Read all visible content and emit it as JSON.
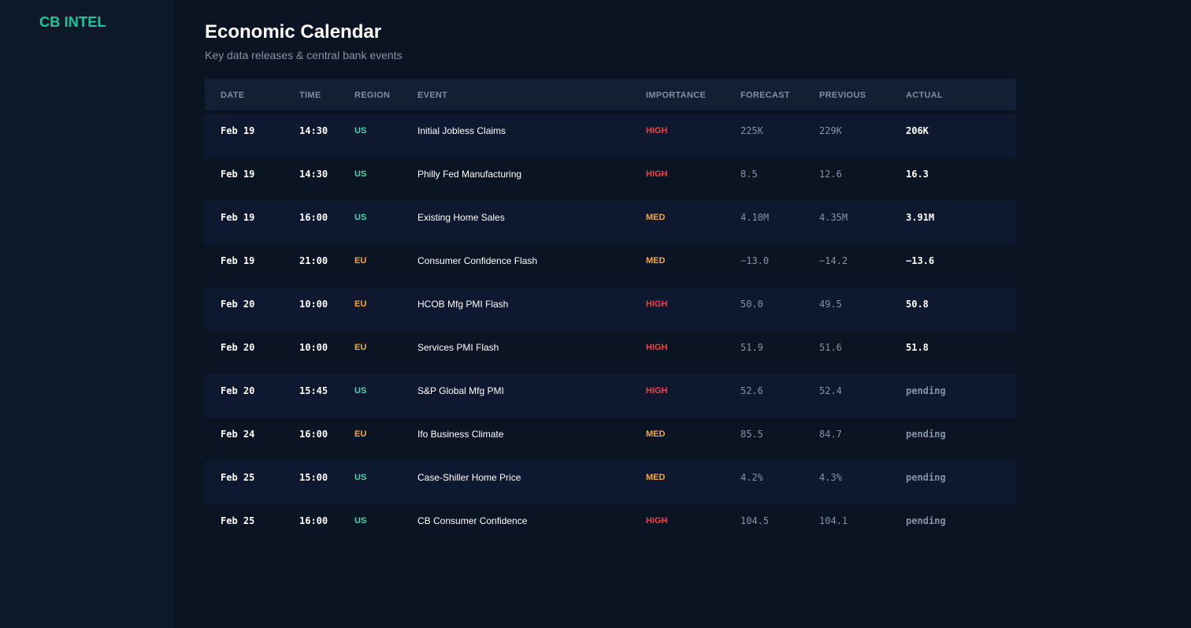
{
  "app": {
    "logo": "CB INTEL"
  },
  "page": {
    "title": "Economic Calendar",
    "subtitle": "Key data releases & central bank events"
  },
  "table": {
    "headers": {
      "date": "DATE",
      "time": "TIME",
      "region": "REGION",
      "event": "EVENT",
      "importance": "IMPORTANCE",
      "forecast": "FORECAST",
      "previous": "PREVIOUS",
      "actual": "ACTUAL"
    },
    "rows": [
      {
        "date": "Feb 19",
        "time": "14:30",
        "region": "US",
        "event": "Initial Jobless Claims",
        "importance": "HIGH",
        "forecast": "225K",
        "previous": "229K",
        "actual": "206K",
        "status": "released"
      },
      {
        "date": "Feb 19",
        "time": "14:30",
        "region": "US",
        "event": "Philly Fed Manufacturing",
        "importance": "HIGH",
        "forecast": "8.5",
        "previous": "12.6",
        "actual": "16.3",
        "status": "released"
      },
      {
        "date": "Feb 19",
        "time": "16:00",
        "region": "US",
        "event": "Existing Home Sales",
        "importance": "MED",
        "forecast": "4.10M",
        "previous": "4.35M",
        "actual": "3.91M",
        "status": "released"
      },
      {
        "date": "Feb 19",
        "time": "21:00",
        "region": "EU",
        "event": "Consumer Confidence Flash",
        "importance": "MED",
        "forecast": "−13.0",
        "previous": "−14.2",
        "actual": "−13.6",
        "status": "released"
      },
      {
        "date": "Feb 20",
        "time": "10:00",
        "region": "EU",
        "event": "HCOB Mfg PMI Flash",
        "importance": "HIGH",
        "forecast": "50.0",
        "previous": "49.5",
        "actual": "50.8",
        "status": "released"
      },
      {
        "date": "Feb 20",
        "time": "10:00",
        "region": "EU",
        "event": "Services PMI Flash",
        "importance": "HIGH",
        "forecast": "51.9",
        "previous": "51.6",
        "actual": "51.8",
        "status": "released"
      },
      {
        "date": "Feb 20",
        "time": "15:45",
        "region": "US",
        "event": "S&P Global Mfg PMI",
        "importance": "HIGH",
        "forecast": "52.6",
        "previous": "52.4",
        "actual": "pending",
        "status": "pending"
      },
      {
        "date": "Feb 24",
        "time": "16:00",
        "region": "EU",
        "event": "Ifo Business Climate",
        "importance": "MED",
        "forecast": "85.5",
        "previous": "84.7",
        "actual": "pending",
        "status": "pending"
      },
      {
        "date": "Feb 25",
        "time": "15:00",
        "region": "US",
        "event": "Case-Shiller Home Price",
        "importance": "MED",
        "forecast": "4.2%",
        "previous": "4.3%",
        "actual": "pending",
        "status": "pending"
      },
      {
        "date": "Feb 25",
        "time": "16:00",
        "region": "US",
        "event": "CB Consumer Confidence",
        "importance": "HIGH",
        "forecast": "104.5",
        "previous": "104.1",
        "actual": "pending",
        "status": "pending"
      }
    ]
  },
  "colors": {
    "brand": "#17c99a",
    "region_us": "#4dd6b0",
    "region_eu": "#f5a93b",
    "importance_high": "#ef4444",
    "importance_med": "#f5a93b",
    "background": "#0b1423",
    "sidebar": "#0d1828"
  }
}
